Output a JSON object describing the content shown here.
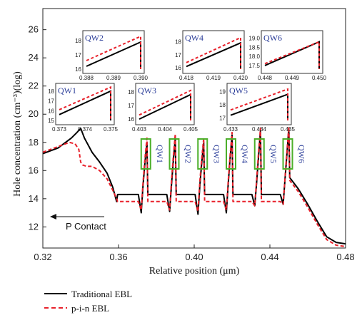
{
  "chart_data": {
    "type": "line",
    "title": "",
    "xlabel": "Relative position (μm)",
    "ylabel": "Hole concentration (cm⁻³)(log)",
    "xlim": [
      0.32,
      0.48
    ],
    "ylim": [
      10.5,
      27.5
    ],
    "xticks": [
      "0.32",
      "0.36",
      "0.40",
      "0.44",
      "0.48"
    ],
    "yticks": [
      "12",
      "14",
      "16",
      "18",
      "20",
      "22",
      "24",
      "26"
    ],
    "annotation": "P Contact",
    "qw_labels": [
      "QW1",
      "QW2",
      "QW3",
      "QW4",
      "QW5",
      "QW6"
    ],
    "colors": {
      "traditional": "#000000",
      "pin": "#e8202a",
      "qw_box": "#4caf2a",
      "qw_text": "#2d3f9a"
    },
    "legend": {
      "position": "bottom-left",
      "entries": [
        "Traditional EBL",
        "p-i-n EBL"
      ]
    },
    "series": [
      {
        "name": "Traditional EBL",
        "x": [
          0.32,
          0.328,
          0.335,
          0.338,
          0.34,
          0.342,
          0.346,
          0.35,
          0.354,
          0.357,
          0.359,
          0.3595,
          0.36,
          0.3705,
          0.372,
          0.373,
          0.374,
          0.375,
          0.3755,
          0.3765,
          0.377,
          0.3855,
          0.387,
          0.388,
          0.389,
          0.39,
          0.3905,
          0.3915,
          0.392,
          0.4005,
          0.402,
          0.403,
          0.404,
          0.405,
          0.4055,
          0.4065,
          0.407,
          0.4155,
          0.417,
          0.418,
          0.419,
          0.42,
          0.4205,
          0.4215,
          0.422,
          0.4305,
          0.432,
          0.433,
          0.434,
          0.435,
          0.4355,
          0.4365,
          0.437,
          0.4455,
          0.447,
          0.448,
          0.449,
          0.45,
          0.4505,
          0.455,
          0.46,
          0.465,
          0.47,
          0.475,
          0.48
        ],
        "y": [
          17.2,
          17.6,
          18.3,
          18.7,
          19.0,
          18.3,
          17.3,
          16.6,
          15.8,
          14.8,
          13.8,
          14.3,
          14.3,
          14.3,
          13.0,
          15.0,
          16.6,
          18.0,
          14.3,
          14.3,
          14.3,
          14.3,
          13.1,
          15.0,
          16.8,
          18.3,
          14.3,
          14.3,
          14.3,
          14.3,
          12.9,
          15.0,
          16.6,
          18.0,
          14.3,
          14.3,
          14.3,
          14.3,
          13.0,
          15.1,
          16.9,
          18.5,
          14.3,
          14.3,
          14.3,
          14.3,
          13.5,
          15.2,
          17.0,
          18.8,
          14.3,
          14.3,
          14.3,
          14.3,
          13.6,
          15.4,
          17.2,
          19.0,
          15.5,
          14.7,
          13.6,
          12.4,
          11.3,
          10.9,
          10.8
        ]
      },
      {
        "name": "p-i-n EBL",
        "x": [
          0.32,
          0.328,
          0.334,
          0.337,
          0.339,
          0.34,
          0.341,
          0.343,
          0.346,
          0.35,
          0.354,
          0.357,
          0.359,
          0.3595,
          0.36,
          0.3705,
          0.372,
          0.373,
          0.374,
          0.375,
          0.3755,
          0.3765,
          0.377,
          0.3855,
          0.387,
          0.388,
          0.389,
          0.39,
          0.3905,
          0.3915,
          0.392,
          0.4005,
          0.402,
          0.403,
          0.404,
          0.405,
          0.4055,
          0.4065,
          0.407,
          0.4155,
          0.417,
          0.418,
          0.419,
          0.42,
          0.4205,
          0.4215,
          0.422,
          0.4305,
          0.432,
          0.433,
          0.434,
          0.435,
          0.4355,
          0.4365,
          0.437,
          0.4455,
          0.447,
          0.448,
          0.449,
          0.45,
          0.4505,
          0.455,
          0.46,
          0.465,
          0.47,
          0.475,
          0.48
        ],
        "y": [
          17.3,
          17.7,
          18.0,
          17.9,
          17.5,
          16.6,
          16.4,
          16.3,
          16.3,
          16.0,
          15.4,
          14.6,
          14.0,
          13.8,
          13.8,
          13.8,
          13.2,
          15.2,
          16.9,
          18.3,
          13.8,
          13.8,
          13.8,
          13.8,
          13.2,
          15.3,
          17.1,
          18.6,
          13.8,
          13.8,
          13.8,
          13.8,
          13.1,
          15.3,
          16.9,
          18.3,
          13.8,
          13.8,
          13.8,
          13.8,
          13.2,
          15.3,
          17.1,
          18.7,
          13.8,
          13.8,
          13.8,
          13.8,
          13.5,
          15.4,
          17.3,
          19.0,
          13.8,
          13.8,
          13.8,
          13.8,
          13.6,
          15.5,
          17.4,
          19.1,
          15.3,
          14.5,
          13.4,
          12.2,
          11.1,
          10.7,
          10.6
        ]
      }
    ],
    "insets": [
      {
        "label": "QW1",
        "xticks": [
          "0.373",
          "0.374",
          "0.375"
        ],
        "yticks": [
          "15",
          "16",
          "17",
          "18"
        ],
        "xlim": [
          0.373,
          0.375
        ],
        "ylim": [
          15,
          18.2
        ],
        "black": [
          [
            0.373,
            15.6
          ],
          [
            0.375,
            18.0
          ],
          [
            0.375,
            15.0
          ]
        ],
        "red": [
          [
            0.373,
            16.1
          ],
          [
            0.375,
            18.4
          ],
          [
            0.375,
            15.0
          ]
        ]
      },
      {
        "label": "QW2",
        "xticks": [
          "0.388",
          "0.389",
          "0.390"
        ],
        "yticks": [
          "16",
          "17",
          "18"
        ],
        "xlim": [
          0.388,
          0.39
        ],
        "ylim": [
          16,
          18.3
        ],
        "black": [
          [
            0.388,
            16.2
          ],
          [
            0.39,
            17.9
          ],
          [
            0.39,
            16.0
          ]
        ],
        "red": [
          [
            0.388,
            16.6
          ],
          [
            0.39,
            18.3
          ],
          [
            0.39,
            16.0
          ]
        ]
      },
      {
        "label": "QW3",
        "xticks": [
          "0.403",
          "0.404",
          "0.405"
        ],
        "yticks": [
          "16",
          "17",
          "18"
        ],
        "xlim": [
          0.403,
          0.405
        ],
        "ylim": [
          15.9,
          18.2
        ],
        "black": [
          [
            0.403,
            16.0
          ],
          [
            0.405,
            17.8
          ],
          [
            0.405,
            15.9
          ]
        ],
        "red": [
          [
            0.403,
            16.3
          ],
          [
            0.405,
            18.1
          ],
          [
            0.405,
            15.9
          ]
        ]
      },
      {
        "label": "QW4",
        "xticks": [
          "0.418",
          "0.419",
          "0.420"
        ],
        "yticks": [
          "16",
          "17",
          "18"
        ],
        "xlim": [
          0.418,
          0.42
        ],
        "ylim": [
          15.9,
          18.4
        ],
        "black": [
          [
            0.418,
            16.1
          ],
          [
            0.42,
            17.9
          ],
          [
            0.42,
            15.9
          ]
        ],
        "red": [
          [
            0.418,
            16.4
          ],
          [
            0.42,
            18.3
          ],
          [
            0.42,
            15.9
          ]
        ]
      },
      {
        "label": "QW5",
        "xticks": [
          "0.433",
          "0.434",
          "0.435"
        ],
        "yticks": [
          "17",
          "18",
          "19"
        ],
        "xlim": [
          0.433,
          0.435
        ],
        "ylim": [
          16.8,
          19.2
        ],
        "black": [
          [
            0.433,
            17.2
          ],
          [
            0.435,
            18.8
          ],
          [
            0.435,
            16.8
          ]
        ],
        "red": [
          [
            0.433,
            17.6
          ],
          [
            0.435,
            19.2
          ],
          [
            0.435,
            16.8
          ]
        ]
      },
      {
        "label": "QW6",
        "xticks": [
          "0.448",
          "0.449",
          "0.450"
        ],
        "yticks": [
          "17.5",
          "18.0",
          "18.5",
          "19.0"
        ],
        "xlim": [
          0.448,
          0.45
        ],
        "ylim": [
          17.3,
          19.1
        ],
        "black": [
          [
            0.448,
            17.5
          ],
          [
            0.45,
            18.8
          ],
          [
            0.45,
            17.3
          ]
        ],
        "red": [
          [
            0.448,
            17.6
          ],
          [
            0.45,
            18.8
          ],
          [
            0.45,
            17.3
          ]
        ]
      }
    ]
  }
}
